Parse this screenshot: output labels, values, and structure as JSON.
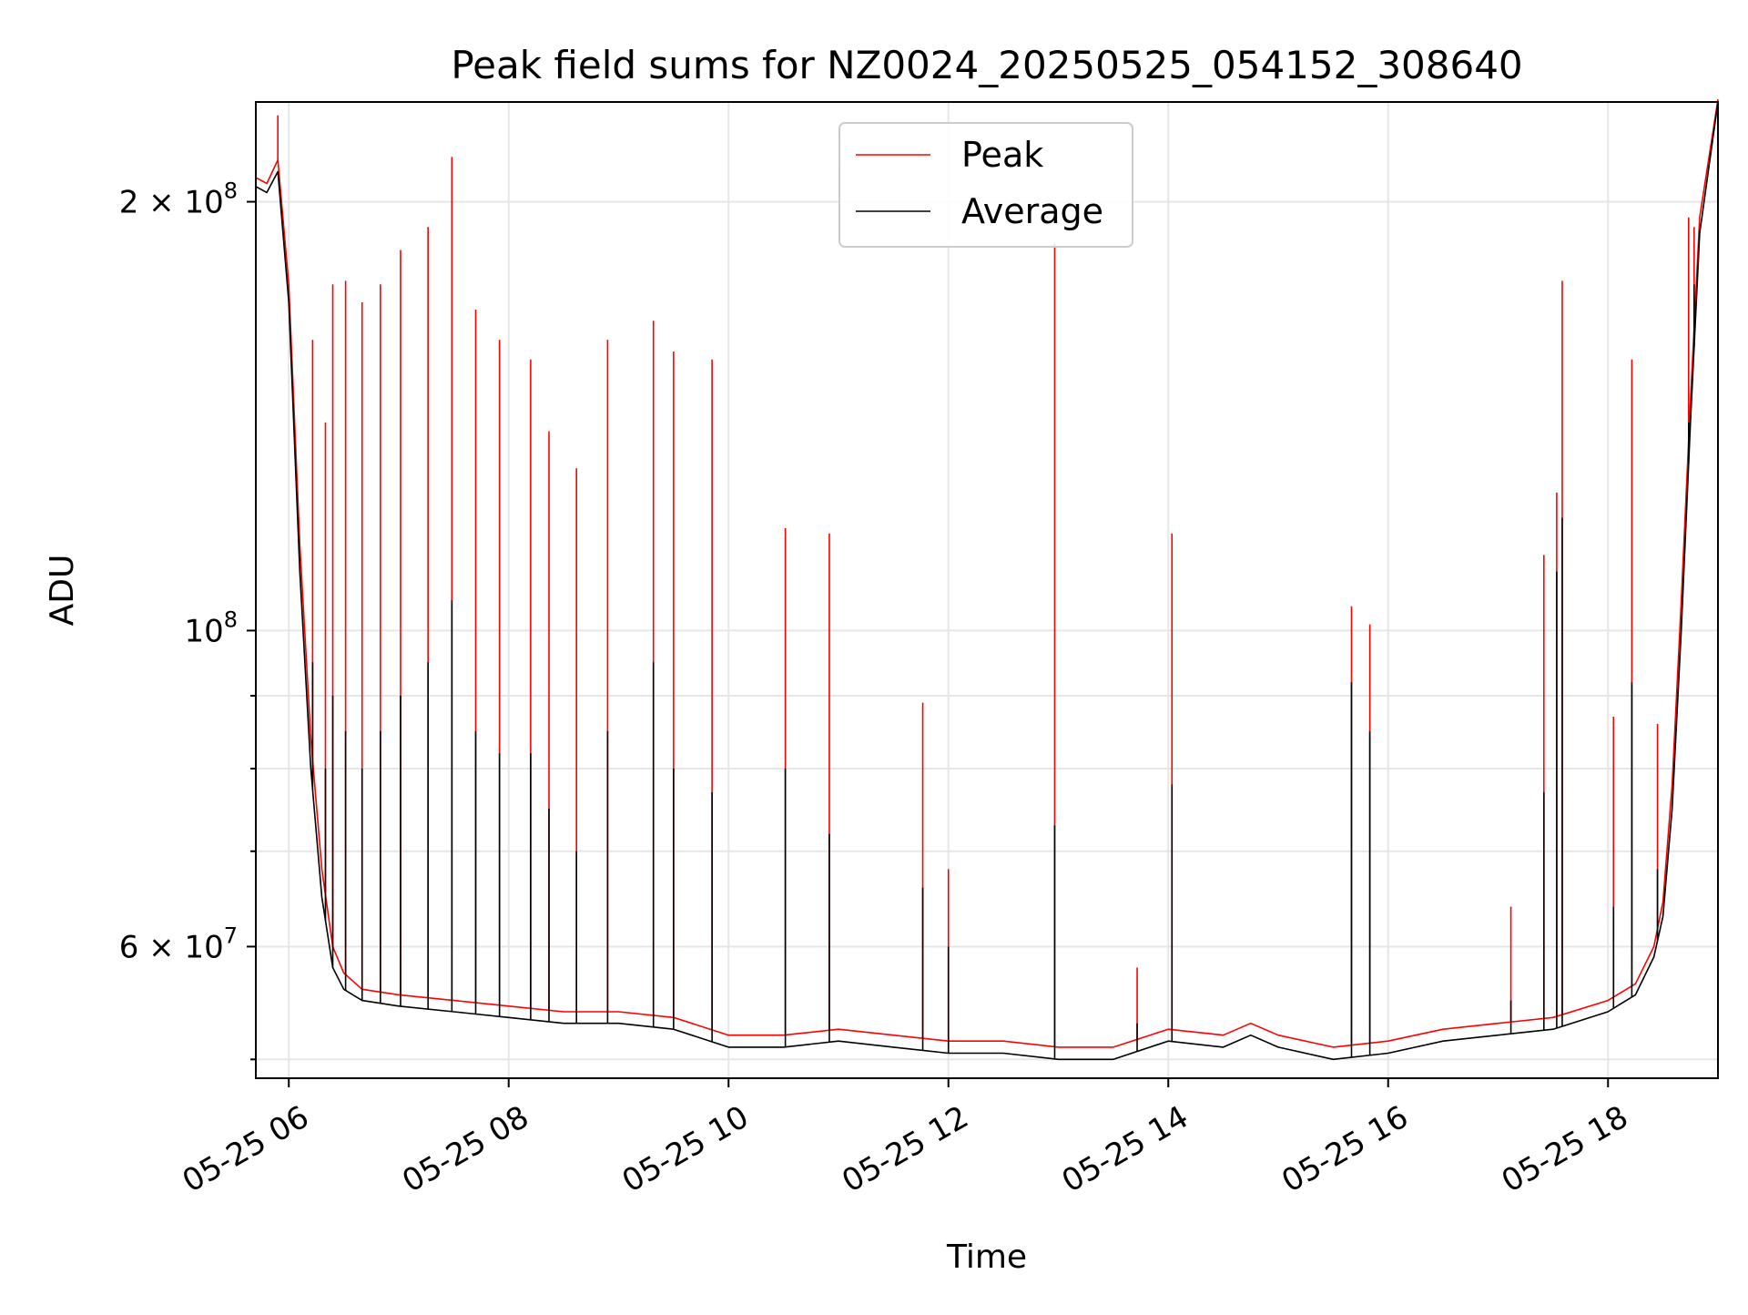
{
  "chart_data": {
    "type": "line",
    "title": "Peak field sums for NZ0024_20250525_054152_308640",
    "xlabel": "Time",
    "ylabel": "ADU",
    "y_scale": "log",
    "grid": true,
    "legend": {
      "placement": "top-center",
      "entries": [
        "Peak",
        "Average"
      ]
    },
    "xlim": [
      "2025-05-25 05:42",
      "2025-05-25 19:00"
    ],
    "ylim": [
      48500000,
      235000000
    ],
    "x_ticks": [
      "05-25 06",
      "05-25 08",
      "05-25 10",
      "05-25 12",
      "05-25 14",
      "05-25 16",
      "05-25 18"
    ],
    "x_tick_times": [
      "2025-05-25 06:00",
      "2025-05-25 08:00",
      "2025-05-25 10:00",
      "2025-05-25 12:00",
      "2025-05-25 14:00",
      "2025-05-25 16:00",
      "2025-05-25 18:00"
    ],
    "y_major_ticks": [
      {
        "value": 60000000,
        "mantissa": "6",
        "exp": "7"
      },
      {
        "value": 100000000,
        "mantissa": "",
        "exp": "8"
      },
      {
        "value": 200000000,
        "mantissa": "2",
        "exp": "8"
      }
    ],
    "y_minor_ticks": [
      50000000,
      70000000,
      80000000,
      90000000
    ],
    "series": [
      {
        "name": "Average",
        "color": "#000000",
        "x": [
          "2025-05-25 05:42",
          "2025-05-25 05:48",
          "2025-05-25 05:54",
          "2025-05-25 06:00",
          "2025-05-25 06:06",
          "2025-05-25 06:12",
          "2025-05-25 06:18",
          "2025-05-25 06:24",
          "2025-05-25 06:30",
          "2025-05-25 06:40",
          "2025-05-25 07:00",
          "2025-05-25 07:30",
          "2025-05-25 08:00",
          "2025-05-25 08:30",
          "2025-05-25 09:00",
          "2025-05-25 09:30",
          "2025-05-25 10:00",
          "2025-05-25 10:30",
          "2025-05-25 11:00",
          "2025-05-25 11:30",
          "2025-05-25 12:00",
          "2025-05-25 12:30",
          "2025-05-25 13:00",
          "2025-05-25 13:30",
          "2025-05-25 14:00",
          "2025-05-25 14:30",
          "2025-05-25 14:45",
          "2025-05-25 15:00",
          "2025-05-25 15:30",
          "2025-05-25 16:00",
          "2025-05-25 16:30",
          "2025-05-25 17:00",
          "2025-05-25 17:30",
          "2025-05-25 18:00",
          "2025-05-25 18:15",
          "2025-05-25 18:25",
          "2025-05-25 18:30",
          "2025-05-25 18:35",
          "2025-05-25 18:40",
          "2025-05-25 18:45",
          "2025-05-25 18:50",
          "2025-05-25 19:00"
        ],
        "values": [
          205000000,
          203000000,
          210000000,
          170000000,
          110000000,
          80000000,
          65000000,
          58000000,
          56000000,
          55000000,
          54500000,
          54000000,
          53500000,
          53000000,
          53000000,
          52500000,
          51000000,
          51000000,
          51500000,
          51000000,
          50500000,
          50500000,
          50000000,
          50000000,
          51500000,
          51000000,
          52000000,
          51000000,
          50000000,
          50500000,
          51500000,
          52000000,
          52500000,
          54000000,
          55500000,
          59000000,
          63000000,
          75000000,
          100000000,
          140000000,
          190000000,
          235000000
        ]
      },
      {
        "name": "Peak",
        "color": "#ff0000",
        "x": [
          "2025-05-25 05:42",
          "2025-05-25 05:48",
          "2025-05-25 05:54",
          "2025-05-25 06:00",
          "2025-05-25 06:06",
          "2025-05-25 06:12",
          "2025-05-25 06:18",
          "2025-05-25 06:24",
          "2025-05-25 06:30",
          "2025-05-25 06:40",
          "2025-05-25 07:00",
          "2025-05-25 07:30",
          "2025-05-25 08:00",
          "2025-05-25 08:30",
          "2025-05-25 09:00",
          "2025-05-25 09:30",
          "2025-05-25 10:00",
          "2025-05-25 10:30",
          "2025-05-25 11:00",
          "2025-05-25 11:30",
          "2025-05-25 12:00",
          "2025-05-25 12:30",
          "2025-05-25 13:00",
          "2025-05-25 13:30",
          "2025-05-25 14:00",
          "2025-05-25 14:30",
          "2025-05-25 14:45",
          "2025-05-25 15:00",
          "2025-05-25 15:30",
          "2025-05-25 16:00",
          "2025-05-25 16:30",
          "2025-05-25 17:00",
          "2025-05-25 17:30",
          "2025-05-25 18:00",
          "2025-05-25 18:15",
          "2025-05-25 18:25",
          "2025-05-25 18:30",
          "2025-05-25 18:35",
          "2025-05-25 18:40",
          "2025-05-25 18:45",
          "2025-05-25 18:50",
          "2025-05-25 19:00"
        ],
        "values": [
          208000000,
          206000000,
          214000000,
          175000000,
          115000000,
          84000000,
          68000000,
          60000000,
          57500000,
          56000000,
          55500000,
          55000000,
          54500000,
          54000000,
          54000000,
          53500000,
          52000000,
          52000000,
          52500000,
          52000000,
          51500000,
          51500000,
          51000000,
          51000000,
          52500000,
          52000000,
          53000000,
          52000000,
          51000000,
          51500000,
          52500000,
          53000000,
          53500000,
          55000000,
          56500000,
          60000000,
          64500000,
          78000000,
          105000000,
          145000000,
          195000000,
          236000000
        ]
      }
    ],
    "spikes": [
      {
        "time": "2025-05-25 05:54",
        "peak": 230000000,
        "average": 210000000
      },
      {
        "time": "2025-05-25 06:13",
        "peak": 160000000,
        "average": 95000000
      },
      {
        "time": "2025-05-25 06:20",
        "peak": 140000000,
        "average": 80000000
      },
      {
        "time": "2025-05-25 06:24",
        "peak": 175000000,
        "average": 90000000
      },
      {
        "time": "2025-05-25 06:31",
        "peak": 176000000,
        "average": 85000000
      },
      {
        "time": "2025-05-25 06:40",
        "peak": 170000000,
        "average": 80000000
      },
      {
        "time": "2025-05-25 06:50",
        "peak": 175000000,
        "average": 85000000
      },
      {
        "time": "2025-05-25 07:01",
        "peak": 185000000,
        "average": 90000000
      },
      {
        "time": "2025-05-25 07:16",
        "peak": 192000000,
        "average": 95000000
      },
      {
        "time": "2025-05-25 07:29",
        "peak": 215000000,
        "average": 105000000
      },
      {
        "time": "2025-05-25 07:42",
        "peak": 168000000,
        "average": 85000000
      },
      {
        "time": "2025-05-25 07:55",
        "peak": 160000000,
        "average": 82000000
      },
      {
        "time": "2025-05-25 08:12",
        "peak": 155000000,
        "average": 82000000
      },
      {
        "time": "2025-05-25 08:22",
        "peak": 138000000,
        "average": 75000000
      },
      {
        "time": "2025-05-25 08:37",
        "peak": 130000000,
        "average": 70000000
      },
      {
        "time": "2025-05-25 08:54",
        "peak": 160000000,
        "average": 85000000
      },
      {
        "time": "2025-05-25 09:19",
        "peak": 165000000,
        "average": 95000000
      },
      {
        "time": "2025-05-25 09:30",
        "peak": 157000000,
        "average": 80000000
      },
      {
        "time": "2025-05-25 09:51",
        "peak": 155000000,
        "average": 77000000
      },
      {
        "time": "2025-05-25 10:31",
        "peak": 118000000,
        "average": 80000000
      },
      {
        "time": "2025-05-25 10:55",
        "peak": 117000000,
        "average": 72000000
      },
      {
        "time": "2025-05-25 11:46",
        "peak": 89000000,
        "average": 66000000
      },
      {
        "time": "2025-05-25 12:00",
        "peak": 68000000,
        "average": 60000000
      },
      {
        "time": "2025-05-25 12:58",
        "peak": 187000000,
        "average": 73000000
      },
      {
        "time": "2025-05-25 13:43",
        "peak": 58000000,
        "average": 53000000
      },
      {
        "time": "2025-05-25 14:02",
        "peak": 117000000,
        "average": 78000000
      },
      {
        "time": "2025-05-25 15:40",
        "peak": 104000000,
        "average": 92000000
      },
      {
        "time": "2025-05-25 15:50",
        "peak": 101000000,
        "average": 85000000
      },
      {
        "time": "2025-05-25 17:07",
        "peak": 64000000,
        "average": 55000000
      },
      {
        "time": "2025-05-25 17:25",
        "peak": 113000000,
        "average": 77000000
      },
      {
        "time": "2025-05-25 17:32",
        "peak": 125000000,
        "average": 110000000
      },
      {
        "time": "2025-05-25 17:35",
        "peak": 176000000,
        "average": 120000000
      },
      {
        "time": "2025-05-25 18:03",
        "peak": 87000000,
        "average": 64000000
      },
      {
        "time": "2025-05-25 18:13",
        "peak": 155000000,
        "average": 92000000
      },
      {
        "time": "2025-05-25 18:27",
        "peak": 86000000,
        "average": 68000000
      },
      {
        "time": "2025-05-25 18:44",
        "peak": 195000000,
        "average": 140000000
      },
      {
        "time": "2025-05-25 18:47",
        "peak": 192000000,
        "average": 175000000
      }
    ]
  }
}
